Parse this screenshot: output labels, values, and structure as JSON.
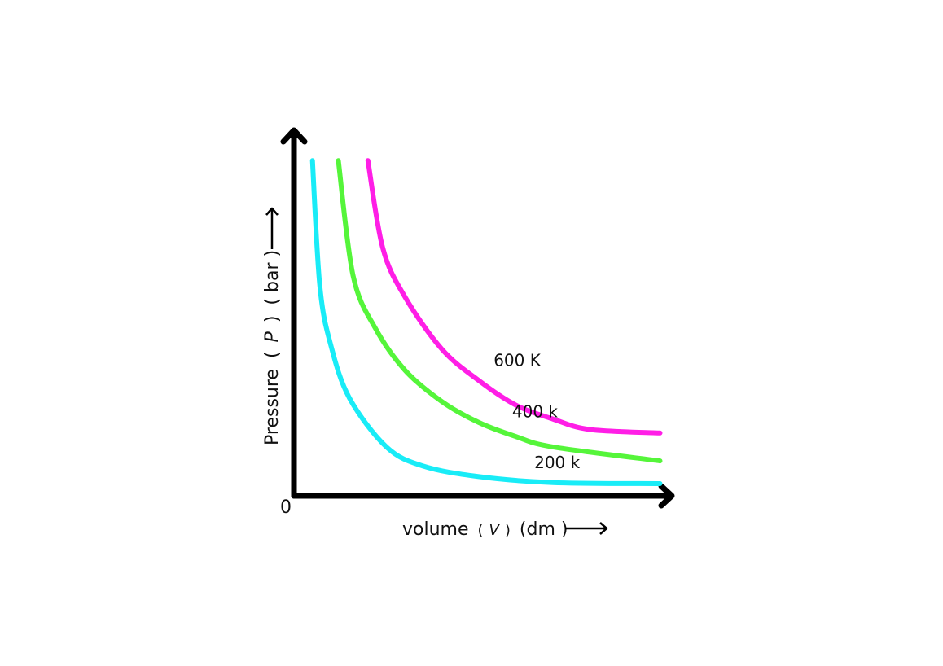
{
  "chart_data": {
    "type": "line",
    "xlabel": {
      "prefix": "volume",
      "symbol_open": "(",
      "symbol": "V",
      "symbol_close": ")",
      "unit": "(dm  )"
    },
    "ylabel": {
      "prefix": "Pressure",
      "symbol_open": "(",
      "symbol": "P",
      "symbol_close": ")",
      "unit": "( bar )"
    },
    "origin_label": "0",
    "xlim": [
      0,
      10
    ],
    "ylim": [
      0,
      10
    ],
    "grid": false,
    "series": [
      {
        "name": "600 K",
        "color": "#ff1ee6",
        "points": [
          [
            2.0,
            9.6
          ],
          [
            2.4,
            7.1
          ],
          [
            3.0,
            5.7
          ],
          [
            4.0,
            4.2
          ],
          [
            5.0,
            3.3
          ],
          [
            6.0,
            2.6
          ],
          [
            7.0,
            2.2
          ],
          [
            8.0,
            1.9
          ],
          [
            9.9,
            1.8
          ]
        ]
      },
      {
        "name": "400 k",
        "color": "#55f53a",
        "points": [
          [
            1.2,
            9.6
          ],
          [
            1.6,
            6.3
          ],
          [
            2.2,
            4.8
          ],
          [
            3.0,
            3.6
          ],
          [
            4.0,
            2.7
          ],
          [
            5.0,
            2.1
          ],
          [
            6.0,
            1.7
          ],
          [
            7.0,
            1.4
          ],
          [
            9.9,
            1.0
          ]
        ]
      },
      {
        "name": "200 k",
        "color": "#19ecf7",
        "points": [
          [
            0.5,
            9.6
          ],
          [
            0.7,
            6.0
          ],
          [
            1.0,
            4.3
          ],
          [
            1.5,
            2.8
          ],
          [
            2.5,
            1.4
          ],
          [
            3.5,
            0.85
          ],
          [
            5.0,
            0.55
          ],
          [
            7.0,
            0.38
          ],
          [
            9.9,
            0.35
          ]
        ]
      }
    ]
  }
}
